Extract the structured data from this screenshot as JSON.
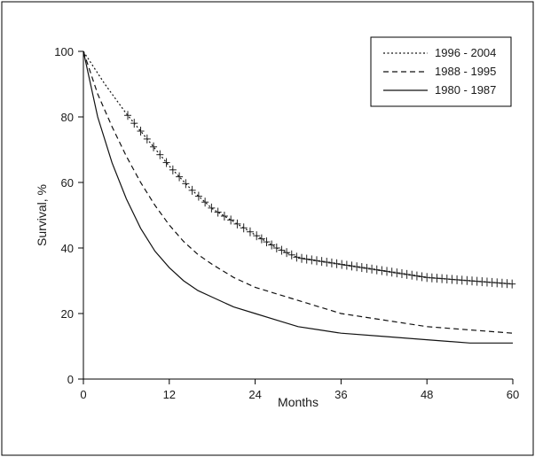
{
  "chart_data": {
    "type": "line",
    "title": "",
    "xlabel": "Months",
    "ylabel": "Survival, %",
    "xlim": [
      0,
      60
    ],
    "ylim": [
      0,
      100
    ],
    "xticks": [
      "0",
      "12",
      "24",
      "36",
      "48",
      "60"
    ],
    "yticks": [
      "0",
      "20",
      "40",
      "60",
      "80",
      "100"
    ],
    "grid": false,
    "legend_position": "top-right",
    "series": [
      {
        "name": "1996 - 2004",
        "style": "dotted",
        "censor_marks": true,
        "x": [
          0,
          3,
          6,
          9,
          12,
          15,
          18,
          21,
          24,
          27,
          30,
          33,
          36,
          42,
          48,
          54,
          60
        ],
        "y": [
          100,
          90,
          81,
          73,
          65,
          58,
          52,
          48,
          44,
          40,
          37,
          36,
          35,
          33,
          31,
          30,
          29
        ]
      },
      {
        "name": "1988 - 1995",
        "style": "dashed",
        "x": [
          0,
          2,
          4,
          6,
          8,
          10,
          12,
          14,
          16,
          18,
          21,
          24,
          27,
          30,
          33,
          36,
          42,
          48,
          54,
          60
        ],
        "y": [
          100,
          87,
          77,
          68,
          60,
          53,
          47,
          42,
          38,
          35,
          31,
          28,
          26,
          24,
          22,
          20,
          18,
          16,
          15,
          14
        ]
      },
      {
        "name": "1980 - 1987",
        "style": "solid",
        "x": [
          0,
          2,
          4,
          6,
          8,
          10,
          12,
          14,
          16,
          18,
          21,
          24,
          27,
          30,
          33,
          36,
          42,
          48,
          54,
          60
        ],
        "y": [
          100,
          80,
          66,
          55,
          46,
          39,
          34,
          30,
          27,
          25,
          22,
          20,
          18,
          16,
          15,
          14,
          13,
          12,
          11,
          11
        ]
      }
    ]
  }
}
